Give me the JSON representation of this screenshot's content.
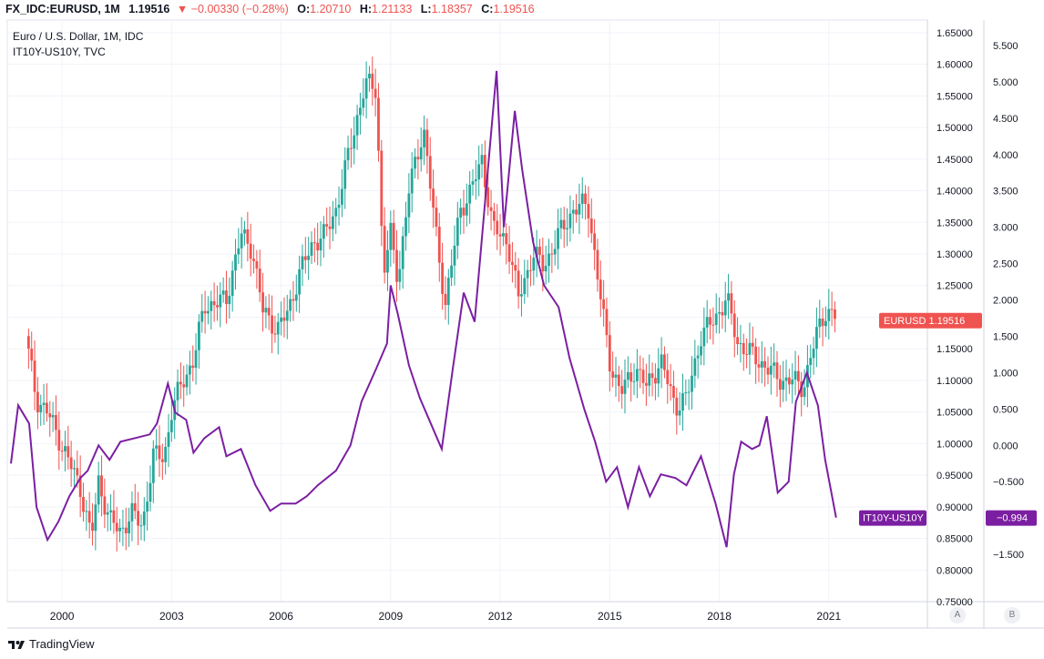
{
  "header": {
    "symbol": "FX_IDC:EURUSD, 1M",
    "last": "1.19516",
    "change_arrow": "▼",
    "change": "−0.00330 (−0.28%)",
    "open_label": "O:",
    "open": "1.20710",
    "high_label": "H:",
    "high": "1.21133",
    "low_label": "L:",
    "low": "1.18357",
    "close_label": "C:",
    "close": "1.19516"
  },
  "legend": {
    "main": "Euro / U.S. Dollar, 1M, IDC",
    "overlay": "IT10Y-US10Y, TVC"
  },
  "footer": {
    "brand": "TradingView"
  },
  "axis_buttons": {
    "a": "A",
    "b": "B"
  },
  "colors": {
    "up": "#26a69a",
    "down": "#ef5350",
    "spread": "#7b1fa2",
    "grid": "#f0f3fa",
    "axis_text": "#131722"
  },
  "chart_data": {
    "type": "line",
    "x_ticks": [
      "2000",
      "2003",
      "2006",
      "2009",
      "2012",
      "2015",
      "2018",
      "2021"
    ],
    "y_left_ticks": [
      0.75,
      0.8,
      0.85,
      0.9,
      0.95,
      1.0,
      1.05,
      1.1,
      1.15,
      1.2,
      1.25,
      1.3,
      1.35,
      1.4,
      1.45,
      1.5,
      1.55,
      1.6,
      1.65
    ],
    "y_left_range": [
      0.75,
      1.67
    ],
    "y_right_ticks": [
      -1.5,
      -1.0,
      -0.5,
      0.0,
      0.5,
      1.0,
      1.5,
      2.0,
      2.5,
      3.0,
      3.5,
      4.0,
      4.5,
      5.0,
      5.5
    ],
    "y_right_range": [
      -2.15,
      5.85
    ],
    "x_range": [
      1998.5,
      2023.7
    ],
    "series": [
      {
        "name": "EURUSD",
        "kind": "candle-approx",
        "last_label": "EURUSD",
        "last_value": "1.19516",
        "points": [
          [
            1999.0,
            1.17
          ],
          [
            1999.3,
            1.07
          ],
          [
            1999.6,
            1.05
          ],
          [
            1999.9,
            1.01
          ],
          [
            2000.2,
            0.97
          ],
          [
            2000.5,
            0.93
          ],
          [
            2000.8,
            0.85
          ],
          [
            2001.0,
            0.94
          ],
          [
            2001.3,
            0.88
          ],
          [
            2001.6,
            0.86
          ],
          [
            2001.9,
            0.89
          ],
          [
            2002.2,
            0.87
          ],
          [
            2002.5,
            0.98
          ],
          [
            2002.8,
            0.98
          ],
          [
            2003.0,
            1.05
          ],
          [
            2003.3,
            1.1
          ],
          [
            2003.6,
            1.13
          ],
          [
            2003.9,
            1.22
          ],
          [
            2004.2,
            1.22
          ],
          [
            2004.5,
            1.23
          ],
          [
            2004.9,
            1.33
          ],
          [
            2005.2,
            1.31
          ],
          [
            2005.5,
            1.21
          ],
          [
            2005.9,
            1.18
          ],
          [
            2006.2,
            1.21
          ],
          [
            2006.5,
            1.27
          ],
          [
            2006.9,
            1.32
          ],
          [
            2007.2,
            1.33
          ],
          [
            2007.5,
            1.37
          ],
          [
            2007.9,
            1.47
          ],
          [
            2008.3,
            1.57
          ],
          [
            2008.6,
            1.56
          ],
          [
            2008.8,
            1.27
          ],
          [
            2009.0,
            1.33
          ],
          [
            2009.2,
            1.26
          ],
          [
            2009.5,
            1.4
          ],
          [
            2009.9,
            1.5
          ],
          [
            2010.2,
            1.35
          ],
          [
            2010.5,
            1.22
          ],
          [
            2010.9,
            1.37
          ],
          [
            2011.2,
            1.4
          ],
          [
            2011.5,
            1.45
          ],
          [
            2011.8,
            1.34
          ],
          [
            2012.2,
            1.32
          ],
          [
            2012.5,
            1.23
          ],
          [
            2012.9,
            1.3
          ],
          [
            2013.2,
            1.28
          ],
          [
            2013.6,
            1.33
          ],
          [
            2014.0,
            1.37
          ],
          [
            2014.4,
            1.38
          ],
          [
            2014.7,
            1.25
          ],
          [
            2015.0,
            1.13
          ],
          [
            2015.3,
            1.08
          ],
          [
            2015.7,
            1.12
          ],
          [
            2016.0,
            1.09
          ],
          [
            2016.4,
            1.13
          ],
          [
            2016.8,
            1.06
          ],
          [
            2017.1,
            1.07
          ],
          [
            2017.5,
            1.17
          ],
          [
            2017.9,
            1.2
          ],
          [
            2018.2,
            1.23
          ],
          [
            2018.5,
            1.16
          ],
          [
            2018.9,
            1.14
          ],
          [
            2019.3,
            1.12
          ],
          [
            2019.7,
            1.1
          ],
          [
            2020.0,
            1.1
          ],
          [
            2020.3,
            1.09
          ],
          [
            2020.7,
            1.18
          ],
          [
            2020.9,
            1.21
          ],
          [
            2021.2,
            1.2
          ]
        ]
      },
      {
        "name": "IT10Y-US10Y",
        "last_label": "IT10Y-US10Y",
        "last_value": "−0.994",
        "points": [
          [
            1998.6,
            -0.25
          ],
          [
            1998.8,
            0.55
          ],
          [
            1999.1,
            0.3
          ],
          [
            1999.3,
            -0.85
          ],
          [
            1999.6,
            -1.3
          ],
          [
            1999.9,
            -1.05
          ],
          [
            2000.2,
            -0.7
          ],
          [
            2000.5,
            -0.45
          ],
          [
            2000.7,
            -0.35
          ],
          [
            2001.0,
            0.0
          ],
          [
            2001.3,
            -0.2
          ],
          [
            2001.6,
            0.05
          ],
          [
            2002.0,
            0.1
          ],
          [
            2002.4,
            0.15
          ],
          [
            2002.6,
            0.3
          ],
          [
            2002.9,
            0.85
          ],
          [
            2003.1,
            0.45
          ],
          [
            2003.4,
            0.35
          ],
          [
            2003.6,
            -0.1
          ],
          [
            2003.9,
            0.1
          ],
          [
            2004.3,
            0.25
          ],
          [
            2004.5,
            -0.15
          ],
          [
            2004.9,
            -0.05
          ],
          [
            2005.3,
            -0.55
          ],
          [
            2005.7,
            -0.9
          ],
          [
            2006.0,
            -0.8
          ],
          [
            2006.4,
            -0.8
          ],
          [
            2006.7,
            -0.7
          ],
          [
            2007.0,
            -0.55
          ],
          [
            2007.5,
            -0.35
          ],
          [
            2007.9,
            0.0
          ],
          [
            2008.2,
            0.6
          ],
          [
            2008.6,
            1.05
          ],
          [
            2008.9,
            1.4
          ],
          [
            2009.0,
            2.2
          ],
          [
            2009.2,
            1.8
          ],
          [
            2009.5,
            1.1
          ],
          [
            2009.8,
            0.65
          ],
          [
            2010.1,
            0.3
          ],
          [
            2010.4,
            -0.05
          ],
          [
            2010.7,
            1.05
          ],
          [
            2011.0,
            2.1
          ],
          [
            2011.3,
            1.7
          ],
          [
            2011.7,
            4.0
          ],
          [
            2011.9,
            5.15
          ],
          [
            2012.1,
            3.0
          ],
          [
            2012.4,
            4.6
          ],
          [
            2012.6,
            3.8
          ],
          [
            2012.9,
            2.8
          ],
          [
            2013.2,
            2.2
          ],
          [
            2013.6,
            1.9
          ],
          [
            2013.9,
            1.2
          ],
          [
            2014.3,
            0.5
          ],
          [
            2014.6,
            0.05
          ],
          [
            2014.9,
            -0.5
          ],
          [
            2015.2,
            -0.3
          ],
          [
            2015.5,
            -0.85
          ],
          [
            2015.8,
            -0.3
          ],
          [
            2016.1,
            -0.7
          ],
          [
            2016.4,
            -0.4
          ],
          [
            2016.8,
            -0.45
          ],
          [
            2017.1,
            -0.55
          ],
          [
            2017.5,
            -0.15
          ],
          [
            2017.9,
            -0.8
          ],
          [
            2018.2,
            -1.4
          ],
          [
            2018.4,
            -0.4
          ],
          [
            2018.6,
            0.05
          ],
          [
            2018.9,
            -0.05
          ],
          [
            2019.1,
            0.0
          ],
          [
            2019.3,
            0.4
          ],
          [
            2019.6,
            -0.65
          ],
          [
            2019.9,
            -0.5
          ],
          [
            2020.1,
            0.6
          ],
          [
            2020.4,
            1.0
          ],
          [
            2020.7,
            0.55
          ],
          [
            2020.9,
            -0.2
          ],
          [
            2021.2,
            -0.994
          ]
        ]
      }
    ]
  }
}
